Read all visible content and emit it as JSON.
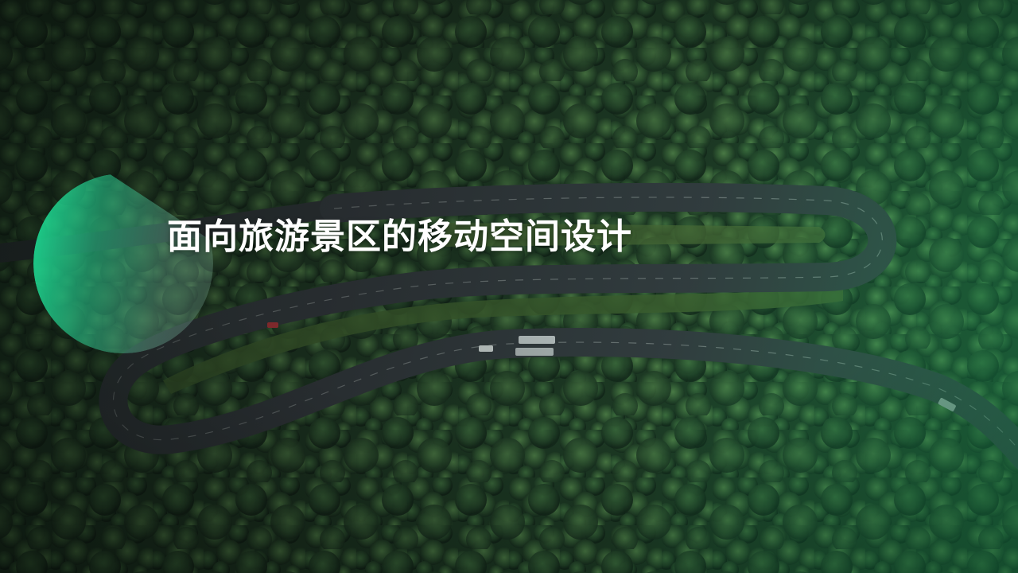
{
  "slide": {
    "title": "面向旅游景区的移动空间设计"
  },
  "colors": {
    "accent": "#1ce196",
    "forest_dark": "#1c3322",
    "forest_light": "#2fbf74",
    "road": "#3a3c44",
    "title_text": "#ffffff"
  },
  "background": {
    "subject": "aerial-forest-winding-road-photo"
  }
}
